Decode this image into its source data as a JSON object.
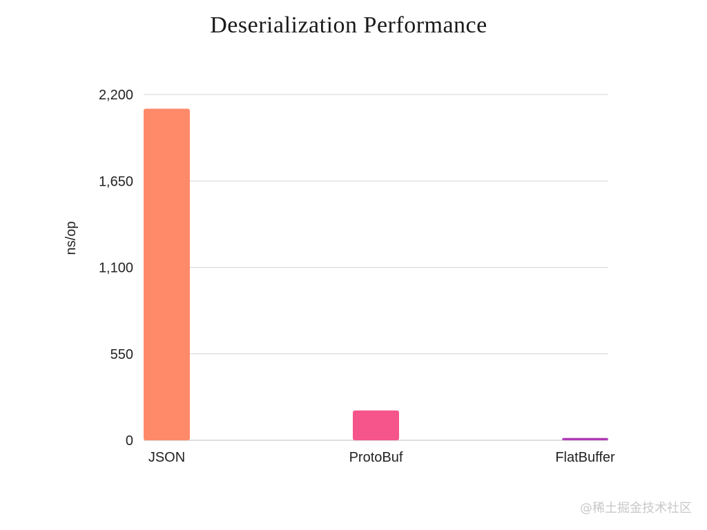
{
  "chart_data": {
    "type": "bar",
    "title": "Deserialization Performance",
    "xlabel": "",
    "ylabel": "ns/op",
    "categories": [
      "JSON",
      "ProtoBuf",
      "FlatBuffer"
    ],
    "values": [
      2110,
      190,
      15
    ],
    "ylim": [
      0,
      2200
    ],
    "yticks": [
      0,
      550,
      1100,
      1650,
      2200
    ],
    "ytick_labels": [
      "0",
      "550",
      "1,100",
      "1,650",
      "2,200"
    ],
    "colors": [
      "#ff8a6a",
      "#f5558a",
      "#b03ab5"
    ],
    "grid": true,
    "legend": "none"
  },
  "watermark": "@稀土掘金技术社区",
  "colors": {
    "grid": "#d4d4d4",
    "axis": "#bdbdbd",
    "text": "#222222"
  }
}
